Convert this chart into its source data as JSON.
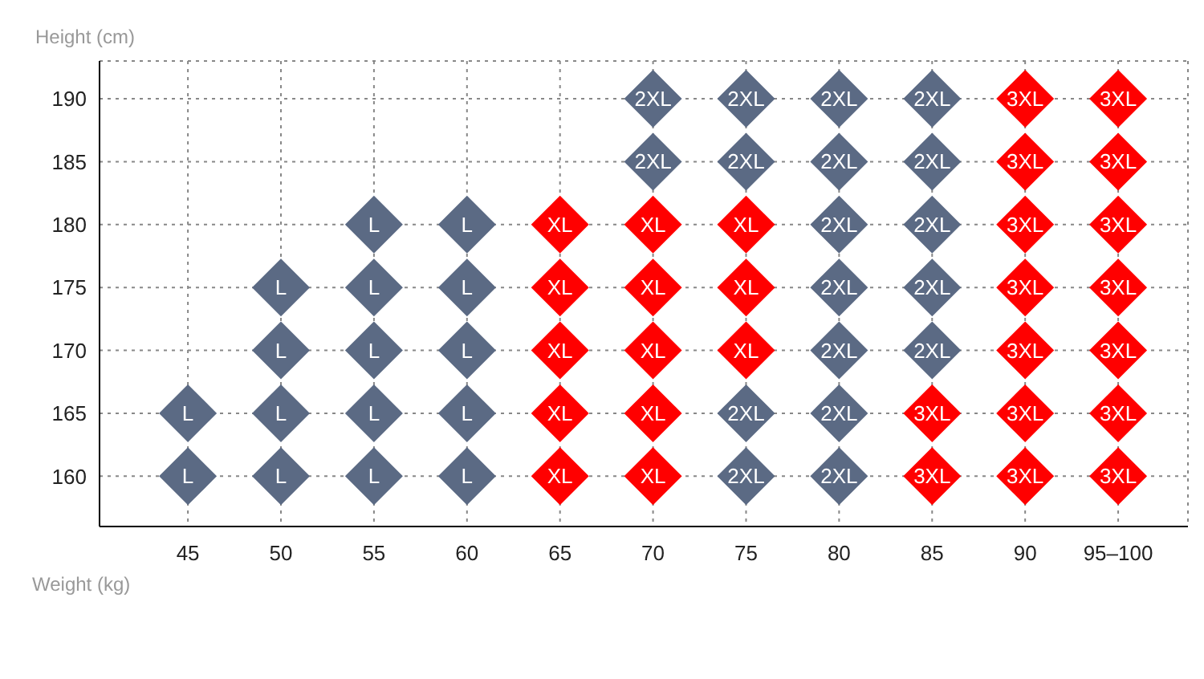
{
  "chart_data": {
    "type": "scatter",
    "xlabel": "Weight (kg)",
    "ylabel": "Height (cm)",
    "categories": [
      "45",
      "50",
      "55",
      "60",
      "65",
      "70",
      "75",
      "80",
      "85",
      "90",
      "95–100"
    ],
    "ylim": [
      156,
      193
    ],
    "yticks": [
      160,
      165,
      170,
      175,
      180,
      185,
      190
    ],
    "grid": true,
    "marker": "diamond",
    "series": [
      {
        "name": "L",
        "color": "#5b6a84",
        "x": [
          "55",
          "60",
          "50",
          "55",
          "60",
          "50",
          "55",
          "60",
          "45",
          "50",
          "55",
          "60",
          "45",
          "50",
          "55",
          "60"
        ],
        "values": [
          180,
          180,
          175,
          175,
          175,
          170,
          170,
          170,
          165,
          165,
          165,
          165,
          160,
          160,
          160,
          160
        ]
      },
      {
        "name": "XL",
        "color": "#ff0000",
        "x": [
          "65",
          "70",
          "75",
          "65",
          "70",
          "75",
          "65",
          "70",
          "75",
          "65",
          "70",
          "65",
          "70"
        ],
        "values": [
          180,
          180,
          180,
          175,
          175,
          175,
          170,
          170,
          170,
          165,
          165,
          160,
          160
        ]
      },
      {
        "name": "2XL",
        "color": "#5b6a84",
        "x": [
          "70",
          "75",
          "80",
          "85",
          "70",
          "75",
          "80",
          "85",
          "80",
          "85",
          "80",
          "85",
          "80",
          "85",
          "75",
          "80",
          "75",
          "80"
        ],
        "values": [
          190,
          190,
          190,
          190,
          185,
          185,
          185,
          185,
          180,
          180,
          175,
          175,
          170,
          170,
          165,
          165,
          160,
          160
        ]
      },
      {
        "name": "3XL",
        "color": "#ff0000",
        "x": [
          "90",
          "95–100",
          "90",
          "95–100",
          "90",
          "95–100",
          "90",
          "95–100",
          "90",
          "95–100",
          "85",
          "90",
          "95–100",
          "85",
          "90",
          "95–100"
        ],
        "values": [
          190,
          190,
          185,
          185,
          180,
          180,
          175,
          175,
          170,
          170,
          165,
          165,
          165,
          160,
          160,
          160
        ]
      }
    ]
  }
}
